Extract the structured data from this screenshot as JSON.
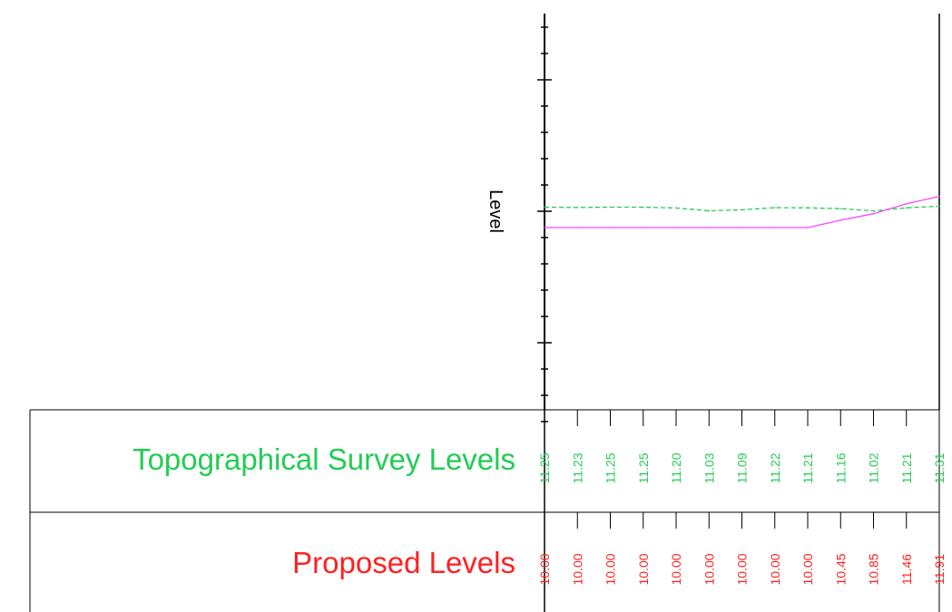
{
  "chart_data": {
    "type": "line",
    "ylabel": "Level",
    "series": [
      {
        "name": "Topographical Survey Levels",
        "color": "#22cc55",
        "style": "dashed",
        "x": [
          0,
          10,
          20,
          30,
          40,
          50,
          60,
          70,
          80,
          90,
          100,
          110,
          120
        ],
        "values": [
          11.25,
          11.23,
          11.25,
          11.25,
          11.2,
          11.03,
          11.09,
          11.22,
          11.21,
          11.16,
          11.02,
          11.21,
          11.31
        ]
      },
      {
        "name": "Proposed Levels",
        "color": "#ff2020",
        "line_color": "#ff44ff",
        "style": "solid",
        "x": [
          0,
          10,
          20,
          30,
          40,
          50,
          60,
          70,
          80,
          90,
          100,
          110,
          120
        ],
        "values": [
          10.0,
          10.0,
          10.0,
          10.0,
          10.0,
          10.0,
          10.0,
          10.0,
          10.0,
          10.45,
          10.85,
          11.46,
          11.91
        ]
      }
    ]
  },
  "bands": [
    {
      "title": "Topographical Survey Levels",
      "color": "#22cc55",
      "labels": [
        "11.25",
        "11.23",
        "11.25",
        "11.25",
        "11.20",
        "11.03",
        "11.09",
        "11.22",
        "11.21",
        "11.16",
        "11.02",
        "11.21",
        "11.31"
      ]
    },
    {
      "title": "Proposed Levels",
      "color": "#ff2020",
      "labels": [
        "10.00",
        "10.00",
        "10.00",
        "10.00",
        "10.00",
        "10.00",
        "10.00",
        "10.00",
        "10.00",
        "10.45",
        "10.85",
        "11.46",
        "11.91"
      ]
    }
  ]
}
